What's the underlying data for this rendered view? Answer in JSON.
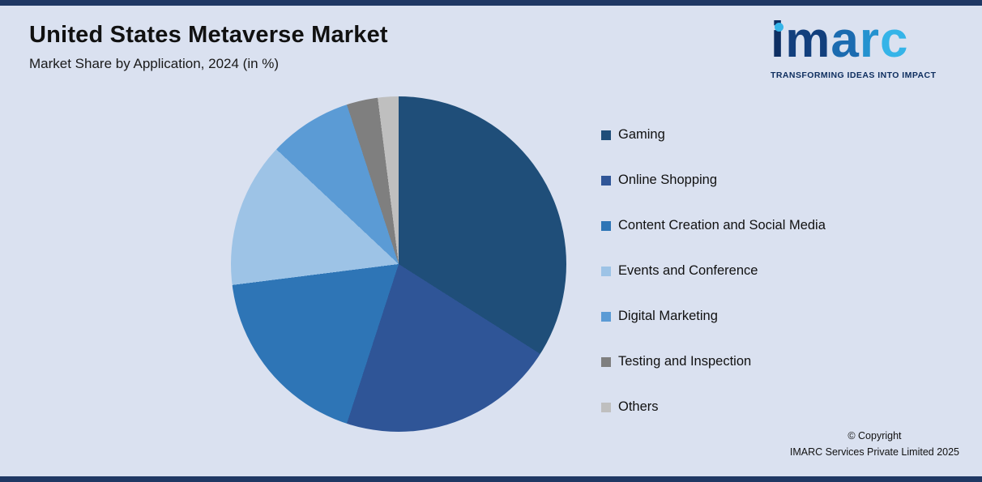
{
  "page": {
    "background_color": "#dae1f0",
    "frame_color": "#1f3864"
  },
  "header": {
    "title": "United States Metaverse Market",
    "subtitle": "Market Share by Application, 2024 (in %)"
  },
  "logo": {
    "text": "imarc",
    "tagline": "TRANSFORMING IDEAS INTO IMPACT",
    "letter_colors": [
      "#0e2f63",
      "#123f7d",
      "#1b6bb0",
      "#2492cf",
      "#35b4e8"
    ],
    "dot_color": "#35b4e8"
  },
  "footer": {
    "copyright_line1": "© Copyright",
    "copyright_line2": "IMARC Services Private Limited 2025"
  },
  "chart_data": {
    "type": "pie",
    "title": "United States Metaverse Market",
    "subtitle": "Market Share by Application, 2024 (in %)",
    "unit": "%",
    "start_angle_deg": 0,
    "direction": "clockwise",
    "legend_position": "right",
    "segments": [
      {
        "label": "Gaming",
        "value": 34,
        "color": "#1f4e79"
      },
      {
        "label": "Online Shopping",
        "value": 21,
        "color": "#2f5597"
      },
      {
        "label": "Content Creation and Social Media",
        "value": 18,
        "color": "#2e75b6"
      },
      {
        "label": "Events and Conference",
        "value": 14,
        "color": "#9dc3e6"
      },
      {
        "label": "Digital Marketing",
        "value": 8,
        "color": "#5b9bd5"
      },
      {
        "label": "Testing and Inspection",
        "value": 3,
        "color": "#7f7f7f"
      },
      {
        "label": "Others",
        "value": 2,
        "color": "#bfbfbf"
      }
    ]
  }
}
